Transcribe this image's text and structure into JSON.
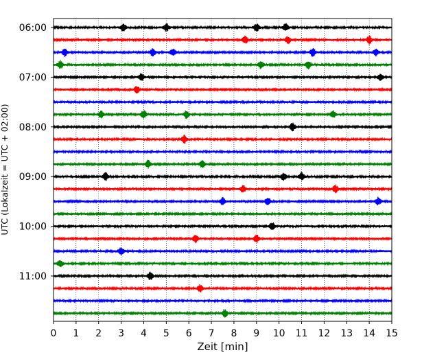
{
  "chart_data": {
    "type": "line",
    "title": "",
    "xlabel": "Zeit  [min]",
    "ylabel": "UTC (Lokalzeit = UTC + 02:00)",
    "xlim": [
      0,
      15
    ],
    "x_ticks": [
      "0",
      "1",
      "2",
      "3",
      "4",
      "5",
      "6",
      "7",
      "8",
      "9",
      "10",
      "11",
      "12",
      "13",
      "14",
      "15"
    ],
    "y_tick_labels": [
      "06:00",
      "07:00",
      "08:00",
      "09:00",
      "10:00",
      "11:00"
    ],
    "grid": "vertical dotted lines at each minute",
    "trace_color_cycle": [
      "#000000",
      "#ff0000",
      "#0000ff",
      "#008000"
    ],
    "traces": [
      {
        "start_utc": "06:00",
        "color": "#000000",
        "events_min": [
          5.0,
          9.0,
          3.1,
          10.3
        ]
      },
      {
        "start_utc": "06:15",
        "color": "#ff0000",
        "events_min": [
          8.5,
          10.4,
          14.0
        ]
      },
      {
        "start_utc": "06:30",
        "color": "#0000ff",
        "events_min": [
          0.5,
          4.4,
          5.3,
          11.5,
          14.3
        ]
      },
      {
        "start_utc": "06:45",
        "color": "#008000",
        "events_min": [
          0.3,
          9.2,
          11.3
        ]
      },
      {
        "start_utc": "07:00",
        "color": "#000000",
        "events_min": [
          3.9,
          14.5
        ]
      },
      {
        "start_utc": "07:15",
        "color": "#ff0000",
        "events_min": [
          3.7
        ]
      },
      {
        "start_utc": "07:30",
        "color": "#0000ff",
        "events_min": []
      },
      {
        "start_utc": "07:45",
        "color": "#008000",
        "events_min": [
          2.1,
          4.0,
          5.9,
          12.4
        ]
      },
      {
        "start_utc": "08:00",
        "color": "#000000",
        "events_min": [
          10.6
        ]
      },
      {
        "start_utc": "08:15",
        "color": "#ff0000",
        "events_min": [
          5.8
        ]
      },
      {
        "start_utc": "08:30",
        "color": "#0000ff",
        "events_min": []
      },
      {
        "start_utc": "08:45",
        "color": "#008000",
        "events_min": [
          4.2,
          6.6
        ]
      },
      {
        "start_utc": "09:00",
        "color": "#000000",
        "events_min": [
          2.3,
          10.2,
          11.0
        ]
      },
      {
        "start_utc": "09:15",
        "color": "#ff0000",
        "events_min": [
          8.4,
          12.5
        ]
      },
      {
        "start_utc": "09:30",
        "color": "#0000ff",
        "events_min": [
          7.5,
          9.5,
          14.4
        ]
      },
      {
        "start_utc": "09:45",
        "color": "#008000",
        "events_min": []
      },
      {
        "start_utc": "10:00",
        "color": "#000000",
        "events_min": [
          9.7
        ]
      },
      {
        "start_utc": "10:15",
        "color": "#ff0000",
        "events_min": [
          6.3,
          9.0
        ]
      },
      {
        "start_utc": "10:30",
        "color": "#0000ff",
        "events_min": [
          3.0
        ]
      },
      {
        "start_utc": "10:45",
        "color": "#008000",
        "events_min": [
          0.3
        ]
      },
      {
        "start_utc": "11:00",
        "color": "#000000",
        "events_min": [
          4.3
        ]
      },
      {
        "start_utc": "11:15",
        "color": "#ff0000",
        "events_min": [
          6.5
        ]
      },
      {
        "start_utc": "11:30",
        "color": "#0000ff",
        "events_min": []
      },
      {
        "start_utc": "11:45",
        "color": "#008000",
        "events_min": [
          7.6
        ]
      }
    ]
  }
}
